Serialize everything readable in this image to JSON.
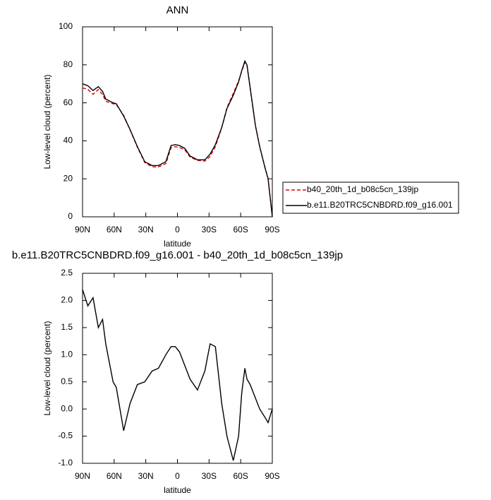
{
  "chart_data": [
    {
      "type": "line",
      "title": "ANN",
      "xlabel": "latitude",
      "ylabel": "Low-level cloud (percent)",
      "x": [
        90,
        85,
        80,
        75,
        71,
        68,
        61,
        58,
        51,
        45,
        38,
        31,
        24,
        18,
        11,
        6,
        2,
        -2,
        -7,
        -12,
        -19,
        -26,
        -31,
        -36,
        -42,
        -47,
        -53,
        -58,
        -61,
        -64,
        -66,
        -69,
        -74,
        -78,
        -83,
        -86,
        -90
      ],
      "series": [
        {
          "name": "b40_20th_1d_b08c5cn_139jp",
          "color": "#e00000",
          "line_style": "dashed",
          "values": [
            67.8,
            67.1,
            64.5,
            67,
            64.4,
            60.8,
            59.5,
            59.1,
            53.4,
            45.9,
            36.6,
            28.5,
            26.3,
            26.3,
            28,
            36.4,
            36.9,
            36.5,
            35.2,
            31.5,
            29.7,
            29.3,
            31.8,
            36.9,
            46.9,
            57.5,
            65,
            71.5,
            76.7,
            81.3,
            79.5,
            67.6,
            47.8,
            37,
            26.2,
            20.3,
            0
          ]
        },
        {
          "name": "b.e11.B20TRC5CNBDRD.f09_g16.001",
          "color": "#000000",
          "line_style": "solid",
          "values": [
            70,
            69,
            66.5,
            68.5,
            66,
            62,
            60,
            59.5,
            53,
            46,
            37,
            29,
            27,
            27,
            29,
            37.5,
            38,
            37.5,
            36,
            32,
            30,
            30,
            33,
            38,
            47,
            57,
            64,
            71,
            77,
            82,
            80,
            68,
            48,
            37,
            26,
            20,
            0
          ]
        }
      ],
      "xlim": [
        90,
        -90
      ],
      "xticks": [
        {
          "value": 90,
          "label": "90N"
        },
        {
          "value": 60,
          "label": "60N"
        },
        {
          "value": 30,
          "label": "30N"
        },
        0,
        {
          "value": -30,
          "label": "30S"
        },
        {
          "value": -60,
          "label": "60S"
        },
        {
          "value": -90,
          "label": "90S"
        }
      ],
      "ylim": [
        0,
        100
      ],
      "yticks": [
        0,
        20,
        40,
        60,
        80,
        100
      ],
      "legend": "outside right"
    },
    {
      "type": "line",
      "title": "b.e11.B20TRC5CNBDRD.f09_g16.001 - b40_20th_1d_b08c5cn_139jp",
      "xlabel": "latitude",
      "ylabel": "Low-level cloud (percent)",
      "x": [
        90,
        85,
        80,
        75,
        71,
        68,
        61,
        58,
        51,
        45,
        38,
        31,
        24,
        18,
        11,
        6,
        2,
        -2,
        -7,
        -12,
        -19,
        -26,
        -31,
        -36,
        -42,
        -47,
        -53,
        -58,
        -61,
        -64,
        -66,
        -69,
        -74,
        -78,
        -83,
        -86,
        -90
      ],
      "series": [
        {
          "color": "#000000",
          "line_style": "solid",
          "values": [
            2.2,
            1.9,
            2.05,
            1.5,
            1.65,
            1.2,
            0.5,
            0.4,
            -0.4,
            0.1,
            0.45,
            0.5,
            0.7,
            0.75,
            1.0,
            1.15,
            1.15,
            1.05,
            0.8,
            0.55,
            0.35,
            0.7,
            1.2,
            1.15,
            0.1,
            -0.5,
            -0.95,
            -0.5,
            0.3,
            0.75,
            0.55,
            0.45,
            0.2,
            0.0,
            -0.15,
            -0.25,
            0.0
          ]
        }
      ],
      "xlim": [
        90,
        -90
      ],
      "xticks": [
        {
          "value": 90,
          "label": "90N"
        },
        {
          "value": 60,
          "label": "60N"
        },
        {
          "value": 30,
          "label": "30N"
        },
        0,
        {
          "value": -30,
          "label": "30S"
        },
        {
          "value": -60,
          "label": "60S"
        },
        {
          "value": -90,
          "label": "90S"
        }
      ],
      "ylim": [
        -1,
        2.5
      ],
      "yticks": [
        {
          "value": -1,
          "label": "-1.0"
        },
        -0.5,
        {
          "value": 0,
          "label": "0.0"
        },
        0.5,
        {
          "value": 1,
          "label": "1.0"
        },
        1.5,
        {
          "value": 2,
          "label": "2.0"
        },
        2.5
      ]
    }
  ]
}
